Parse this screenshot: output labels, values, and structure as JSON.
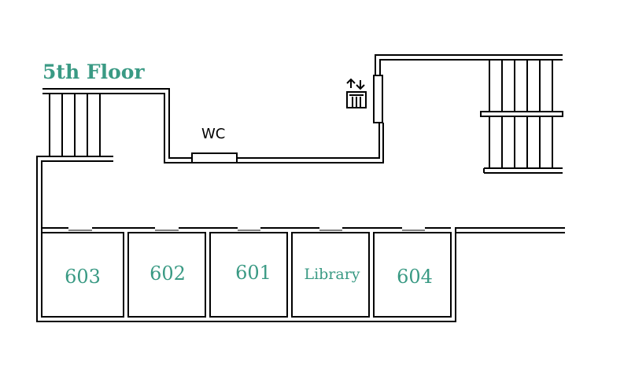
{
  "floor": {
    "title": "5th Floor"
  },
  "labels": {
    "wc": "WC"
  },
  "rooms": [
    {
      "label": "603"
    },
    {
      "label": "602"
    },
    {
      "label": "601"
    },
    {
      "label": "Library"
    },
    {
      "label": "604"
    }
  ],
  "colors": {
    "accent": "#3a9a84",
    "wall": "#000000",
    "background": "#ffffff"
  },
  "icons": {
    "elevator": "elevator-icon"
  }
}
